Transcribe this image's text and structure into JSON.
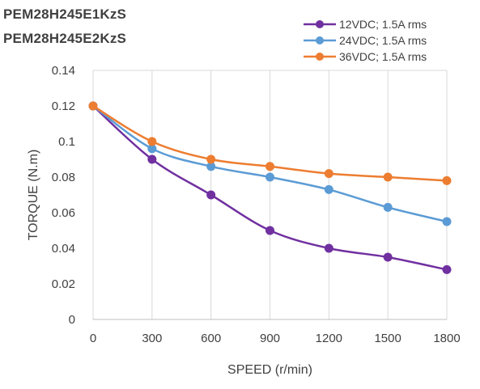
{
  "chart_data": {
    "type": "line",
    "title_lines": [
      "PEM28H245E1KzS",
      "PEM28H245E2KzS"
    ],
    "xlabel": "SPEED (r/min)",
    "ylabel": "TORQUE (N.m)",
    "x": [
      0,
      300,
      600,
      900,
      1200,
      1500,
      1800
    ],
    "xlim": [
      0,
      1800
    ],
    "ylim": [
      0,
      0.14
    ],
    "x_ticks": [
      "0",
      "300",
      "600",
      "900",
      "1200",
      "1500",
      "1800"
    ],
    "y_ticks": [
      "0",
      "0.02",
      "0.04",
      "0.06",
      "0.08",
      "0.1",
      "0.12",
      "0.14"
    ],
    "grid": "vertical",
    "legend_position": "top-right",
    "series": [
      {
        "name": "12VDC; 1.5A rms",
        "color": "#7030a0",
        "values": [
          0.12,
          0.09,
          0.07,
          0.05,
          0.04,
          0.035,
          0.028
        ]
      },
      {
        "name": "24VDC; 1.5A rms",
        "color": "#5b9bd5",
        "values": [
          0.12,
          0.096,
          0.086,
          0.08,
          0.073,
          0.063,
          0.055
        ]
      },
      {
        "name": "36VDC; 1.5A rms",
        "color": "#ed7d31",
        "values": [
          0.12,
          0.1,
          0.09,
          0.086,
          0.082,
          0.08,
          0.078
        ]
      }
    ]
  }
}
